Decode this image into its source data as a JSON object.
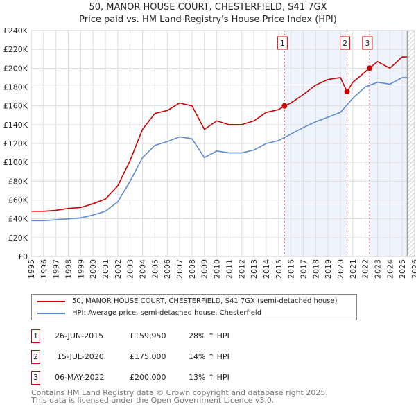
{
  "chart_data": {
    "type": "line",
    "title": "50, MANOR HOUSE COURT, CHESTERFIELD, S41 7GX",
    "subtitle": "Price paid vs. HM Land Registry's House Price Index (HPI)",
    "xlim": [
      1995,
      2026
    ],
    "ylim": [
      0,
      240000
    ],
    "x_ticks": [
      "1995",
      "1996",
      "1997",
      "1998",
      "1999",
      "2000",
      "2001",
      "2002",
      "2003",
      "2004",
      "2005",
      "2006",
      "2007",
      "2008",
      "2009",
      "2010",
      "2011",
      "2012",
      "2013",
      "2014",
      "2015",
      "2016",
      "2017",
      "2018",
      "2019",
      "2020",
      "2021",
      "2022",
      "2023",
      "2024",
      "2025",
      "2026"
    ],
    "y_ticks": [
      "£0",
      "£20K",
      "£40K",
      "£60K",
      "£80K",
      "£100K",
      "£120K",
      "£140K",
      "£160K",
      "£180K",
      "£200K",
      "£220K",
      "£240K"
    ],
    "grid": true,
    "series": [
      {
        "name": "50, MANOR HOUSE COURT, CHESTERFIELD, S41 7GX (semi-detached house)",
        "color": "#cc0000",
        "x": [
          1995,
          1996,
          1997,
          1998,
          1999,
          2000,
          2001,
          2002,
          2003,
          2004,
          2005,
          2006,
          2007,
          2008,
          2009,
          2010,
          2011,
          2012,
          2013,
          2014,
          2015,
          2015.48,
          2016,
          2017,
          2018,
          2019,
          2020,
          2020.54,
          2021,
          2022,
          2022.35,
          2023,
          2024,
          2025,
          2025.4
        ],
        "y": [
          48000,
          48000,
          49000,
          51000,
          52000,
          56000,
          61000,
          75000,
          102000,
          135000,
          152000,
          155000,
          163000,
          160000,
          135000,
          144000,
          140000,
          140000,
          144000,
          153000,
          156000,
          159950,
          163000,
          172000,
          182000,
          188000,
          190000,
          175000,
          185000,
          196000,
          200000,
          207000,
          200000,
          212000,
          212000
        ]
      },
      {
        "name": "HPI: Average price, semi-detached house, Chesterfield",
        "color": "#5b8bd0",
        "x": [
          1995,
          1996,
          1997,
          1998,
          1999,
          2000,
          2001,
          2002,
          2003,
          2004,
          2005,
          2006,
          2007,
          2008,
          2009,
          2010,
          2011,
          2012,
          2013,
          2014,
          2015,
          2016,
          2017,
          2018,
          2019,
          2020,
          2021,
          2022,
          2023,
          2024,
          2025,
          2025.4
        ],
        "y": [
          38000,
          38000,
          39000,
          40000,
          41000,
          44000,
          48000,
          58000,
          80000,
          105000,
          118000,
          122000,
          127000,
          125000,
          105000,
          112000,
          110000,
          110000,
          113000,
          120000,
          123000,
          130000,
          137000,
          143000,
          148000,
          153000,
          168000,
          180000,
          185000,
          183000,
          190000,
          190000
        ]
      }
    ],
    "sales": [
      {
        "label": "1",
        "x": 2015.48,
        "y": 159950,
        "date": "26-JUN-2015",
        "price": "£159,950",
        "hpi": "28% ↑ HPI"
      },
      {
        "label": "2",
        "x": 2020.54,
        "y": 175000,
        "date": "15-JUL-2020",
        "price": "£175,000",
        "hpi": "14% ↑ HPI"
      },
      {
        "label": "3",
        "x": 2022.35,
        "y": 200000,
        "date": "06-MAY-2022",
        "price": "£200,000",
        "hpi": "13% ↑ HPI"
      }
    ],
    "forecast_start": 2025.4
  },
  "legend": {
    "red": "50, MANOR HOUSE COURT, CHESTERFIELD, S41 7GX (semi-detached house)",
    "blue": "HPI: Average price, semi-detached house, Chesterfield"
  },
  "footer": {
    "line1": "Contains HM Land Registry data © Crown copyright and database right 2025.",
    "line2": "This data is licensed under the Open Government Licence v3.0."
  }
}
